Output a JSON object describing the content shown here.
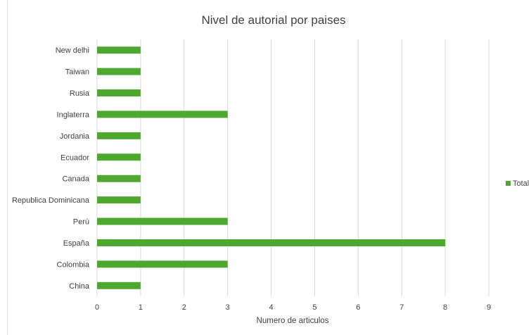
{
  "colors": {
    "bar": "#4ea72e",
    "grid": "#d9d9d9",
    "text": "#404040"
  },
  "chart_data": {
    "type": "bar",
    "orientation": "horizontal",
    "title": "Nivel de autorial por paises",
    "xlabel": "Numero de articulos",
    "ylabel": "",
    "xlim": [
      0,
      9
    ],
    "x_ticks": [
      0,
      1,
      2,
      3,
      4,
      5,
      6,
      7,
      8,
      9
    ],
    "grid": true,
    "legend_position": "right",
    "categories": [
      "New delhi",
      "Taiwan",
      "Rusia",
      "Inglaterra",
      "Jordania",
      "Ecuador",
      "Canada",
      "Republica Dominicana",
      "Perú",
      "España",
      "Colombia",
      "China"
    ],
    "series": [
      {
        "name": "Total",
        "values": [
          1,
          1,
          1,
          3,
          1,
          1,
          1,
          1,
          3,
          8,
          3,
          1
        ]
      }
    ]
  }
}
